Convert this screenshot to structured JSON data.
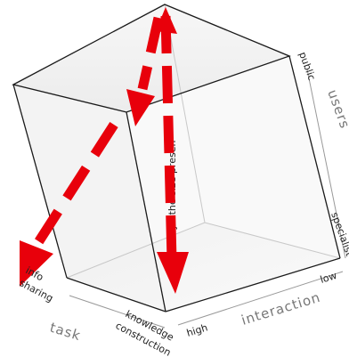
{
  "diagram": {
    "axes": {
      "users": {
        "title": "users",
        "ticks": {
          "public": "public",
          "specialist": "specialist"
        }
      },
      "interaction": {
        "title": "interaction",
        "ticks": {
          "low": "low",
          "high": "high"
        }
      },
      "task": {
        "title": "task",
        "ticks": {
          "info_sharing_line1": "info",
          "info_sharing_line2": "sharing",
          "knowledge_line1": "knowledge",
          "knowledge_line2": "construction"
        }
      }
    },
    "vertical_arrow_text": "e  lyze  syn  the  size  presen",
    "colors": {
      "arrow": "#e8000b",
      "cube_face": "#f2f2f2",
      "edge": "#1a1a1a"
    }
  }
}
